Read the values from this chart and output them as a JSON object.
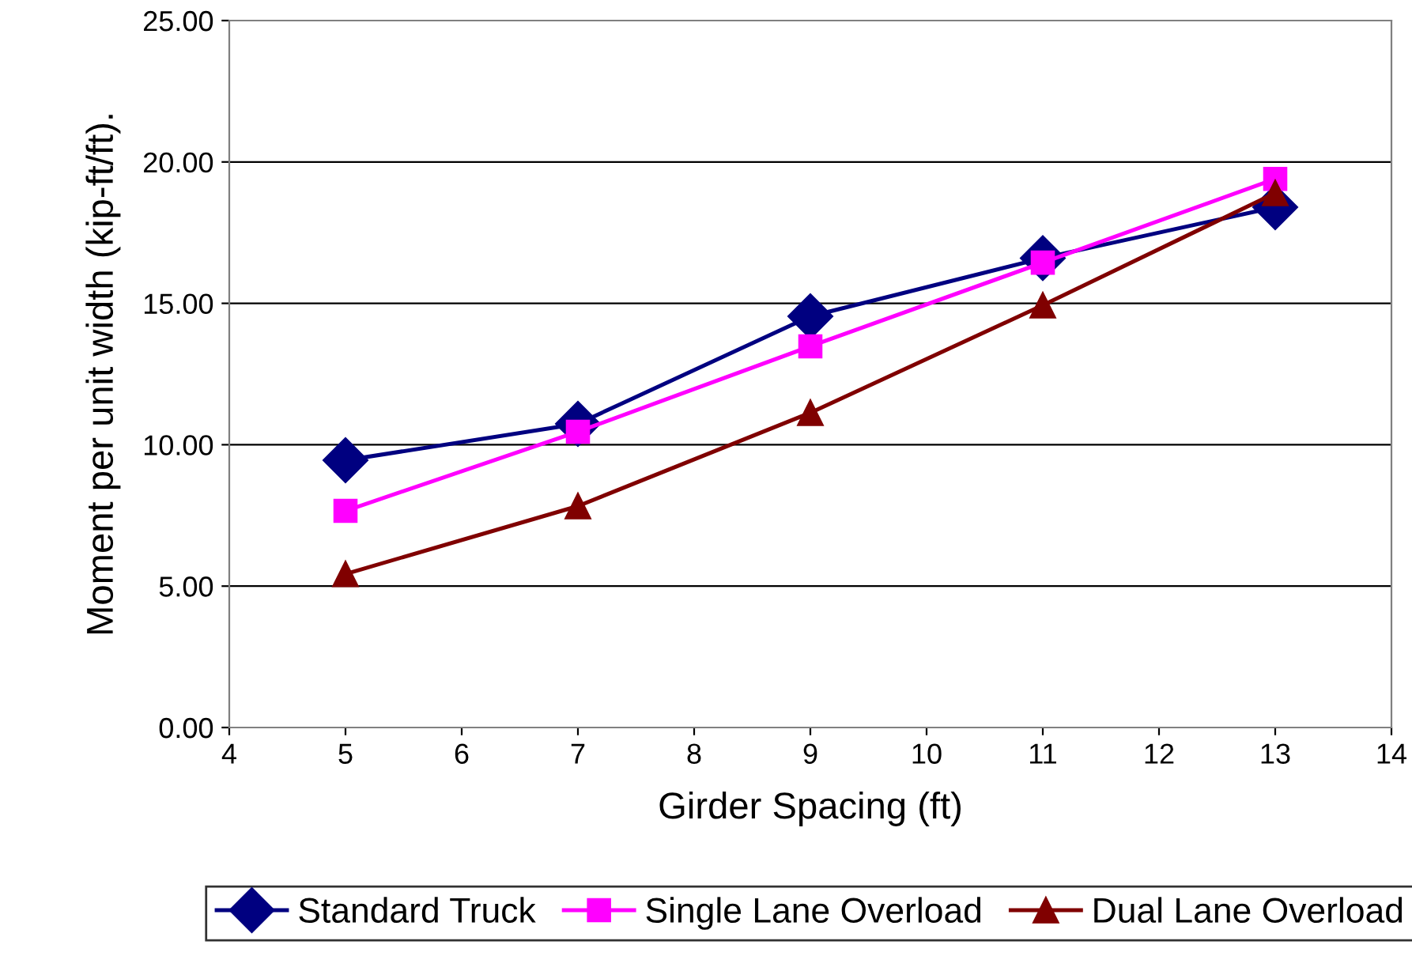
{
  "chart_data": {
    "type": "line",
    "xlabel": "Girder Spacing (ft)",
    "ylabel": "Moment per unit width (kip-ft/ft).",
    "x": [
      5,
      7,
      9,
      11,
      13
    ],
    "series": [
      {
        "name": "Standard Truck",
        "color": "#000080",
        "marker": "diamond",
        "values": [
          9.45,
          10.74,
          14.54,
          16.6,
          18.4
        ]
      },
      {
        "name": "Single Lane Overload",
        "color": "#ff00ff",
        "marker": "square",
        "values": [
          7.66,
          10.46,
          13.48,
          16.44,
          19.4
        ]
      },
      {
        "name": "Dual Lane Overload",
        "color": "#800000",
        "marker": "triangle",
        "values": [
          5.43,
          7.83,
          11.13,
          14.93,
          18.9
        ]
      }
    ],
    "xlim": [
      4,
      14
    ],
    "xticks": [
      4,
      5,
      6,
      7,
      8,
      9,
      10,
      11,
      12,
      13,
      14
    ],
    "ylim": [
      0,
      25
    ],
    "yticks": [
      {
        "value": 0,
        "label": "0.00"
      },
      {
        "value": 5,
        "label": "5.00"
      },
      {
        "value": 10,
        "label": "10.00"
      },
      {
        "value": 15,
        "label": "15.00"
      },
      {
        "value": 20,
        "label": "20.00"
      },
      {
        "value": 25,
        "label": "25.00"
      }
    ],
    "grid": "y",
    "legend": "bottom",
    "line_style": "solid"
  }
}
